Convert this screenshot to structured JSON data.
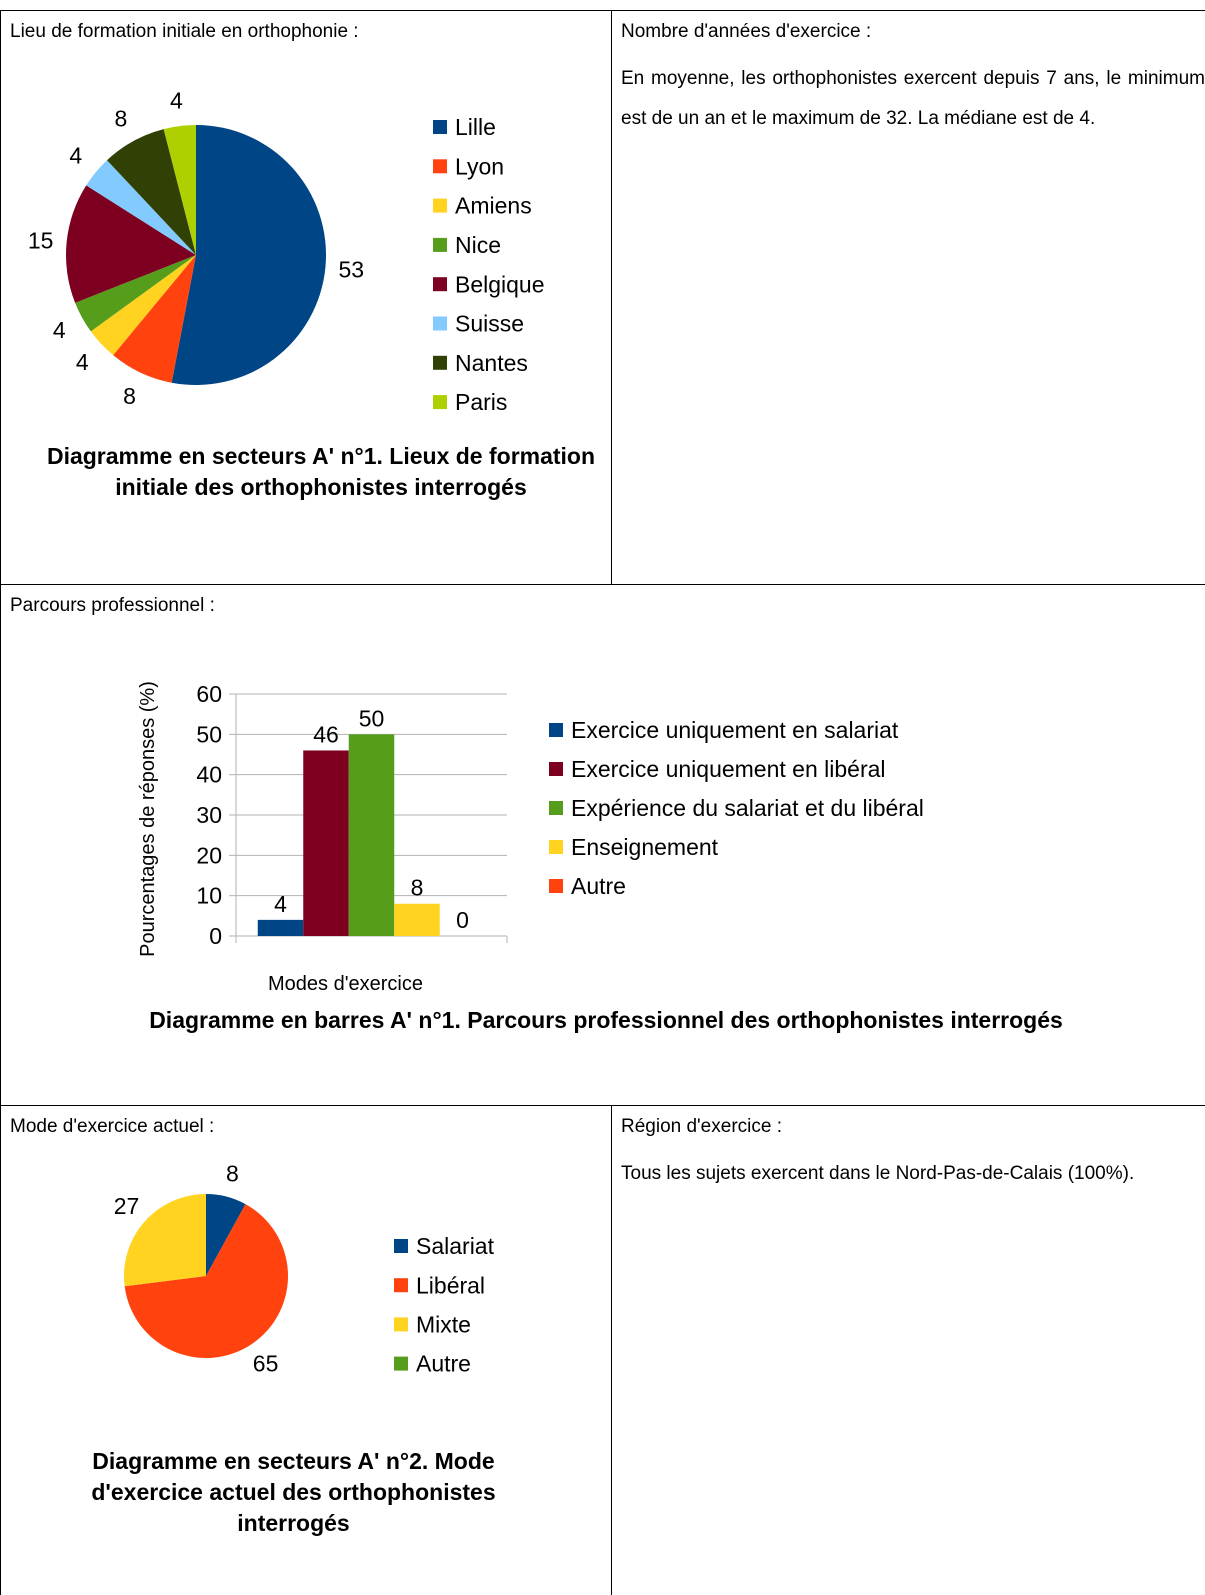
{
  "sections": {
    "lieu_formation": {
      "heading": "Lieu de formation initiale en orthophonie :",
      "caption": "Diagramme en secteurs A' n°1. Lieux de formation initiale des orthophonistes interrogés"
    },
    "annees_exercice": {
      "heading": "Nombre d'années d'exercice :",
      "text": "En moyenne, les orthophonistes exercent depuis 7 ans, le minimum est de un an et le maximum de 32. La médiane est de 4."
    },
    "parcours": {
      "heading": "Parcours professionnel :",
      "caption": "Diagramme en barres A' n°1. Parcours professionnel des orthophonistes interrogés"
    },
    "mode_actuel": {
      "heading": "Mode d'exercice actuel :",
      "caption": "Diagramme en secteurs A' n°2. Mode d'exercice actuel des orthophonistes interrogés"
    },
    "region": {
      "heading": "Région d'exercice :",
      "text": "Tous les sujets exercent dans le Nord-Pas-de-Calais (100%)."
    }
  },
  "chart_data": [
    {
      "type": "pie",
      "title": "Diagramme en secteurs A' n°1. Lieux de formation initiale des orthophonistes interrogés",
      "categories": [
        "Lille",
        "Lyon",
        "Amiens",
        "Nice",
        "Belgique",
        "Suisse",
        "Nantes",
        "Paris"
      ],
      "values": [
        53,
        8,
        4,
        4,
        15,
        4,
        8,
        4
      ],
      "colors": [
        "#004586",
        "#ff420e",
        "#ffd320",
        "#579d1c",
        "#7e0021",
        "#83caff",
        "#314004",
        "#aecf00"
      ],
      "legend": "right"
    },
    {
      "type": "bar",
      "title": "Diagramme en barres A' n°1. Parcours professionnel des orthophonistes interrogés",
      "xlabel": "Modes d'exercice",
      "ylabel": "Pourcentages de réponses (%)",
      "ylim": [
        0,
        60
      ],
      "yticks": [
        "0",
        "10",
        "20",
        "30",
        "40",
        "50",
        "60"
      ],
      "series": [
        {
          "name": "Exercice uniquement en salariat",
          "values": [
            4
          ],
          "color": "#004586"
        },
        {
          "name": "Exercice uniquement en libéral",
          "values": [
            46
          ],
          "color": "#7e0021"
        },
        {
          "name": "Expérience du salariat et du libéral",
          "values": [
            50
          ],
          "color": "#579d1c"
        },
        {
          "name": "Enseignement",
          "values": [
            8
          ],
          "color": "#ffd320"
        },
        {
          "name": "Autre",
          "values": [
            0
          ],
          "color": "#ff420e"
        }
      ],
      "grid": true,
      "legend": "right"
    },
    {
      "type": "pie",
      "title": "Diagramme en secteurs A' n°2. Mode d'exercice actuel des orthophonistes interrogés",
      "categories": [
        "Salariat",
        "Libéral",
        "Mixte",
        "Autre"
      ],
      "values": [
        8,
        65,
        27,
        0
      ],
      "colors": [
        "#004586",
        "#ff420e",
        "#ffd320",
        "#579d1c"
      ],
      "legend": "right"
    }
  ]
}
